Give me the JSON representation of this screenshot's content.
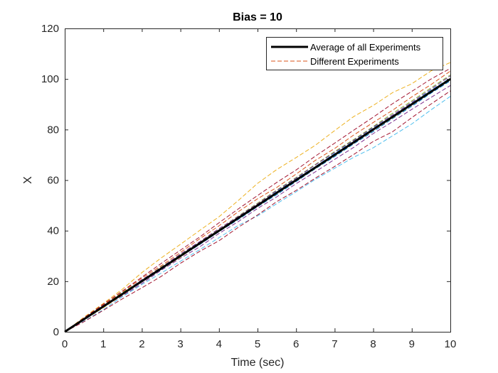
{
  "chart_data": {
    "type": "line",
    "title": "Bias = 10",
    "xlabel": "Time (sec)",
    "ylabel": "X",
    "xlim": [
      0,
      10
    ],
    "ylim": [
      0,
      120
    ],
    "xticks": [
      0,
      1,
      2,
      3,
      4,
      5,
      6,
      7,
      8,
      9,
      10
    ],
    "yticks": [
      0,
      20,
      40,
      60,
      80,
      100,
      120
    ],
    "grid": false,
    "legend": {
      "placement": "top-right",
      "entries": [
        "Average of all Experiments",
        "Different Experiments"
      ]
    },
    "x": [
      0,
      0.5,
      1,
      1.5,
      2,
      2.5,
      3,
      3.5,
      4,
      4.5,
      5,
      5.5,
      6,
      6.5,
      7,
      7.5,
      8,
      8.5,
      9,
      9.5,
      10
    ],
    "series": [
      {
        "name": "Average of all Experiments",
        "style": "solid",
        "color": "#000000",
        "values": [
          0,
          5,
          10,
          15,
          20,
          25,
          30,
          35,
          40,
          45,
          50,
          55,
          60,
          65,
          70,
          75,
          80,
          85,
          90,
          95,
          100
        ]
      },
      {
        "name": "Different Experiments",
        "style": "dashed",
        "color": "#EDB120",
        "values": [
          0,
          5.8,
          11.2,
          16.9,
          23.4,
          29.2,
          34.6,
          40.1,
          45.5,
          51.9,
          58.7,
          64.2,
          68.9,
          73.8,
          79.6,
          85.2,
          89.5,
          94.6,
          98.1,
          103.2,
          106.5
        ]
      },
      {
        "style": "dashed",
        "color": "#4DBEEE",
        "values": [
          0,
          4.2,
          8.8,
          13.9,
          18.7,
          23.2,
          27.9,
          32.5,
          37.2,
          42.1,
          45.8,
          50.7,
          55.4,
          60.3,
          64.7,
          69.1,
          72.8,
          77.5,
          82.2,
          87.8,
          93.1
        ]
      },
      {
        "style": "dashed",
        "color": "#A2142F",
        "values": [
          0,
          4.0,
          8.5,
          13.1,
          17.4,
          21.9,
          27.1,
          31.8,
          36.0,
          41.3,
          46.2,
          51.5,
          55.9,
          60.8,
          65.4,
          70.2,
          75.3,
          79.1,
          84.7,
          90.1,
          95.3
        ]
      },
      {
        "style": "dashed",
        "color": "#7E2F8E",
        "values": [
          0,
          4.6,
          9.7,
          14.3,
          19.1,
          24.3,
          29.1,
          33.6,
          38.9,
          43.6,
          48.8,
          53.4,
          58.6,
          63.3,
          68.2,
          73.0,
          78.4,
          83.1,
          88.0,
          92.7,
          97.4
        ]
      },
      {
        "style": "dashed",
        "color": "#D95319",
        "values": [
          0,
          5.3,
          10.6,
          15.8,
          21.2,
          26.1,
          31.4,
          36.8,
          41.9,
          47.5,
          52.6,
          57.1,
          62.4,
          67.8,
          72.5,
          77.9,
          82.8,
          87.6,
          92.9,
          97.8,
          103.1
        ]
      },
      {
        "style": "dashed",
        "color": "#77AC30",
        "values": [
          0,
          5.1,
          10.3,
          15.5,
          20.4,
          25.7,
          30.6,
          35.4,
          40.7,
          45.8,
          50.9,
          56.1,
          61.0,
          66.2,
          71.3,
          76.1,
          81.2,
          86.4,
          91.3,
          96.5,
          101.6
        ]
      },
      {
        "style": "dashed",
        "color": "#0072BD",
        "values": [
          0,
          4.9,
          9.8,
          14.8,
          19.7,
          24.6,
          29.7,
          34.5,
          39.6,
          44.4,
          49.5,
          54.3,
          59.4,
          64.5,
          69.3,
          74.4,
          79.2,
          84.3,
          89.2,
          94.4,
          99.3
        ]
      },
      {
        "style": "dashed",
        "color": "#A2142F",
        "values": [
          0,
          5.5,
          10.9,
          16.2,
          21.6,
          27.0,
          32.3,
          37.5,
          43.1,
          48.6,
          53.9,
          59.1,
          64.0,
          69.5,
          74.6,
          79.8,
          84.9,
          90.2,
          95.1,
          100.0,
          104.2
        ]
      },
      {
        "style": "dashed",
        "color": "#4DBEEE",
        "values": [
          0,
          5.0,
          10.1,
          15.2,
          20.3,
          25.0,
          30.3,
          35.2,
          40.2,
          45.3,
          50.2,
          55.6,
          60.6,
          65.4,
          70.6,
          75.5,
          80.6,
          85.4,
          90.5,
          95.6,
          100.4
        ]
      },
      {
        "style": "dashed",
        "color": "#EDB120",
        "values": [
          0,
          4.7,
          9.5,
          14.6,
          19.9,
          24.8,
          29.5,
          34.9,
          39.8,
          44.9,
          49.7,
          54.8,
          59.8,
          64.7,
          69.8,
          74.9,
          79.7,
          84.6,
          89.7,
          94.8,
          99.8
        ]
      },
      {
        "style": "dashed",
        "color": "#7E2F8E",
        "values": [
          0,
          5.2,
          10.4,
          15.1,
          20.6,
          25.5,
          30.8,
          35.7,
          40.8,
          45.6,
          50.6,
          55.9,
          60.8,
          66.0,
          71.0,
          75.8,
          80.9,
          85.8,
          90.8,
          96.0,
          101.2
        ]
      },
      {
        "style": "dashed",
        "color": "#D95319",
        "values": [
          0,
          4.8,
          9.9,
          14.9,
          20.0,
          24.9,
          29.9,
          35.0,
          40.1,
          44.8,
          50.0,
          54.9,
          59.9,
          64.9,
          69.9,
          74.7,
          79.8,
          84.9,
          89.9,
          94.9,
          100.2
        ]
      }
    ]
  }
}
